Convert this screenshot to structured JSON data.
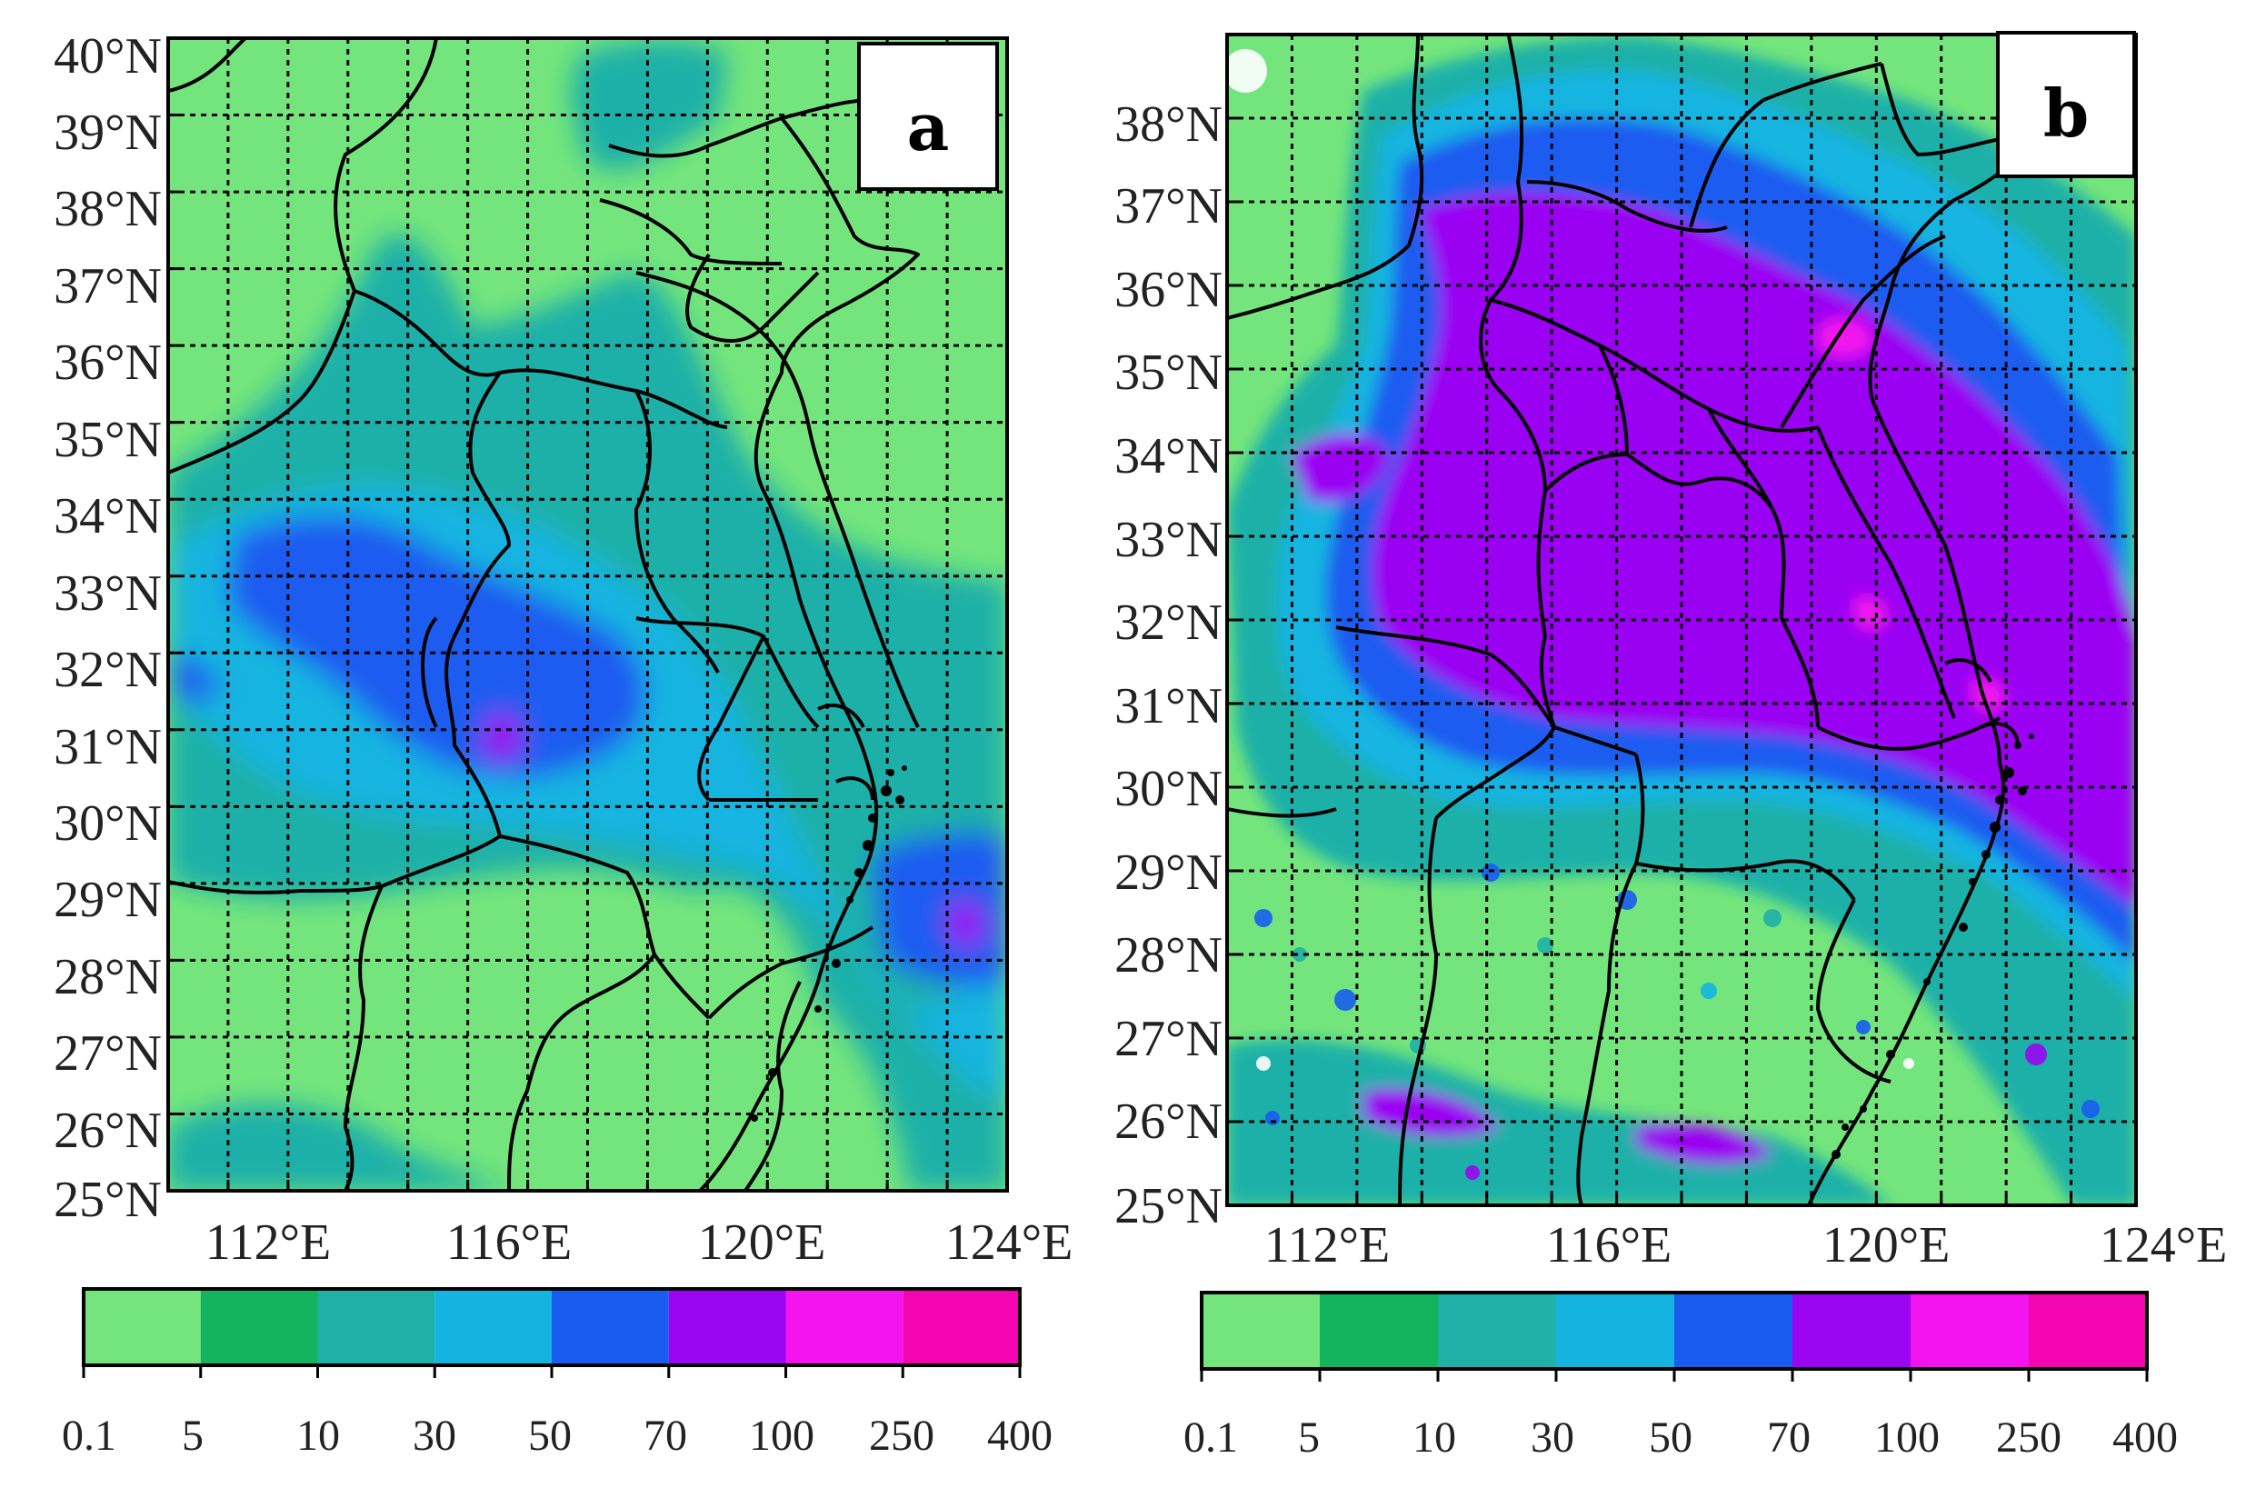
{
  "panels": [
    {
      "letter": "a",
      "lat_labels": [
        "40°N",
        "39°N",
        "38°N",
        "37°N",
        "36°N",
        "35°N",
        "34°N",
        "33°N",
        "32°N",
        "31°N",
        "30°N",
        "29°N",
        "28°N",
        "27°N",
        "26°N",
        "25°N"
      ],
      "lon_labels": [
        "112°E",
        "116°E",
        "120°E",
        "124°E"
      ],
      "colorbar": {
        "ticks": [
          "0.1",
          "5",
          "10",
          "30",
          "50",
          "70",
          "100",
          "250",
          "400"
        ]
      },
      "lat_range": [
        25,
        40
      ],
      "lon_range": [
        110,
        124
      ]
    },
    {
      "letter": "b",
      "lat_labels": [
        "38°N",
        "37°N",
        "36°N",
        "35°N",
        "34°N",
        "33°N",
        "32°N",
        "31°N",
        "30°N",
        "29°N",
        "28°N",
        "27°N",
        "26°N",
        "25°N"
      ],
      "lon_labels": [
        "112°E",
        "116°E",
        "120°E",
        "124°E"
      ],
      "colorbar": {
        "ticks": [
          "0.1",
          "5",
          "10",
          "30",
          "50",
          "70",
          "100",
          "250",
          "400"
        ]
      },
      "lat_range": [
        25,
        39
      ],
      "lon_range": [
        110,
        124
      ]
    }
  ],
  "colors": {
    "levels": [
      "#74e57c",
      "#14b45e",
      "#1fb0a8",
      "#15b4e0",
      "#1a5cf0",
      "#9a05f2",
      "#f313ee",
      "#f305b0"
    ],
    "border": "#000000"
  }
}
